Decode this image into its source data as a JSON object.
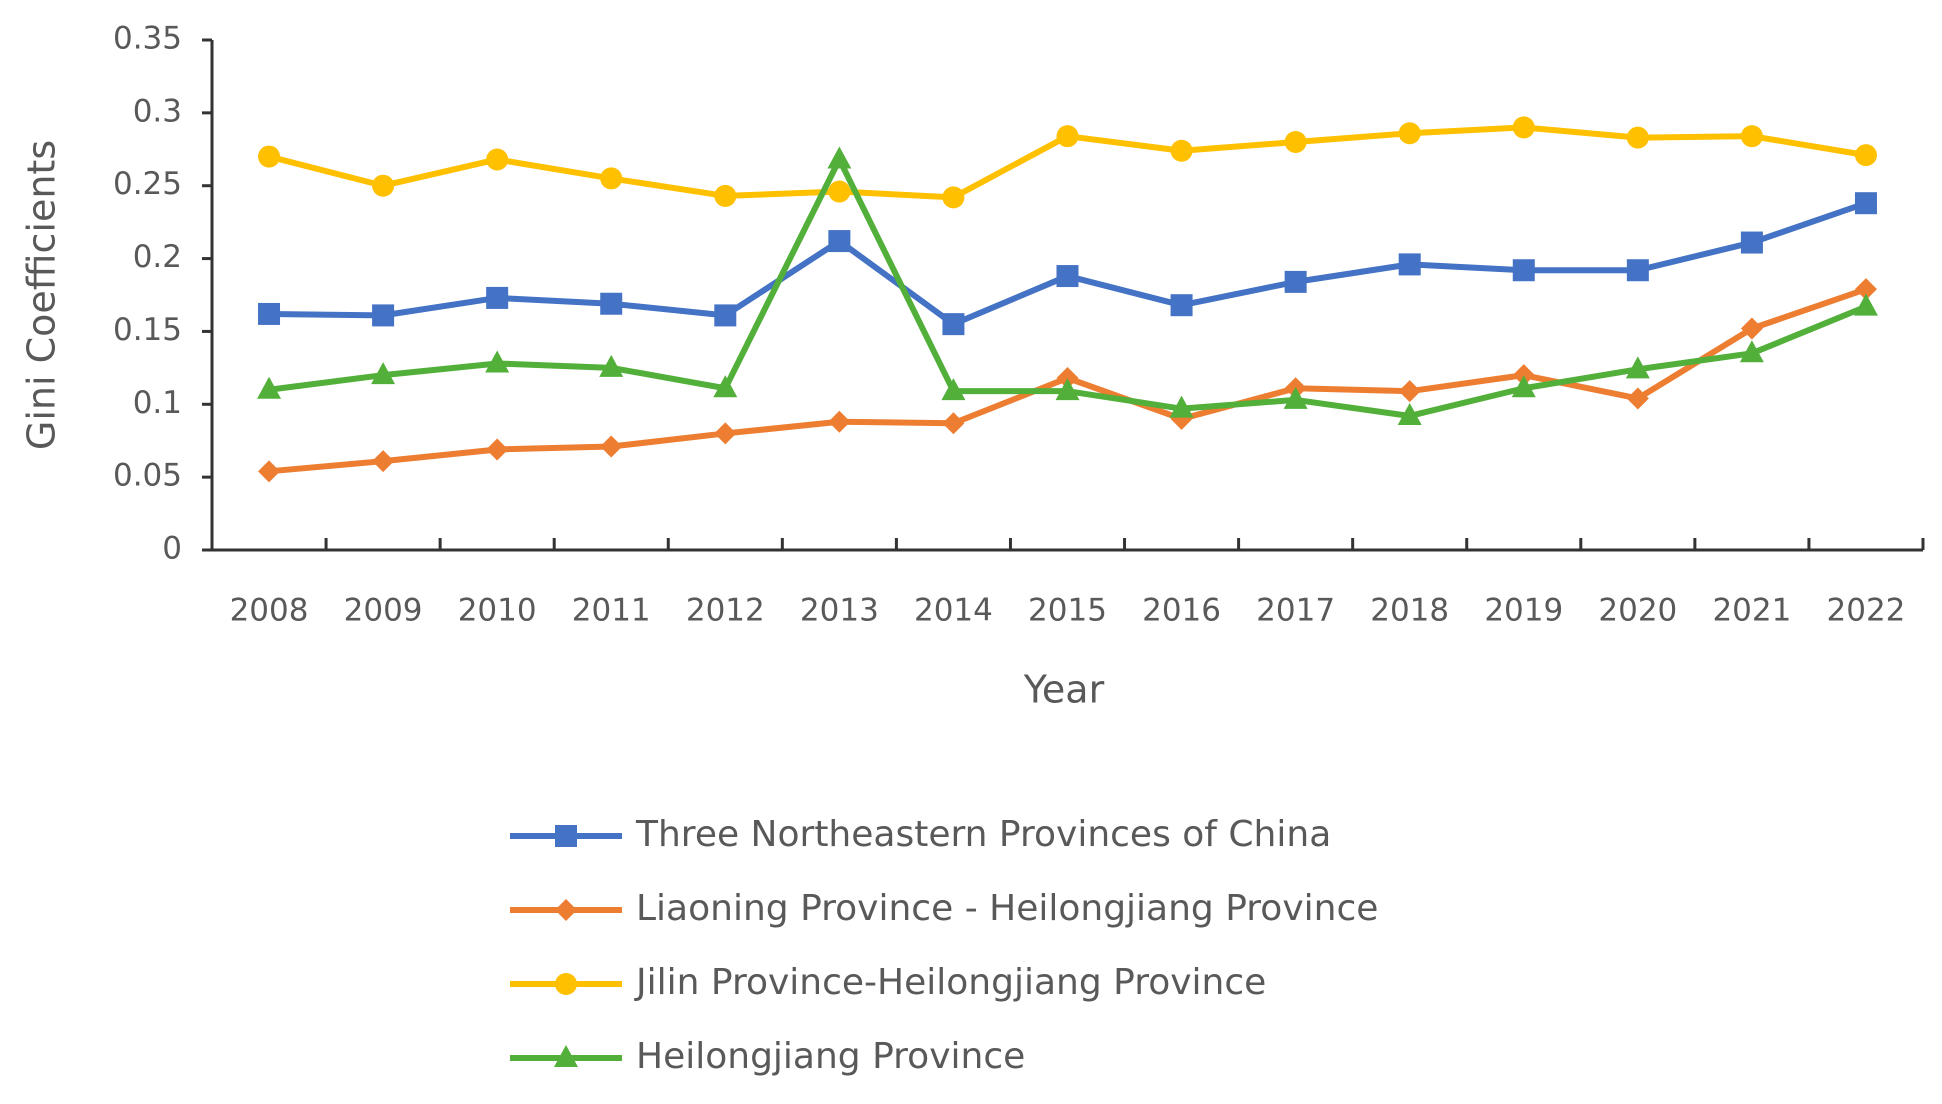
{
  "chart_data": {
    "type": "line",
    "x_label": "Year",
    "y_label": "Gini Coefficients",
    "categories": [
      "2008",
      "2009",
      "2010",
      "2011",
      "2012",
      "2013",
      "2014",
      "2015",
      "2016",
      "2017",
      "2018",
      "2019",
      "2020",
      "2021",
      "2022"
    ],
    "ylim": [
      0,
      0.35
    ],
    "yticks": [
      0,
      0.05,
      0.1,
      0.15,
      0.2,
      0.25,
      0.3,
      0.35
    ],
    "grid": false,
    "series": [
      {
        "name": "Three Northeastern Provinces of China",
        "color": "#4472c4",
        "marker": "square",
        "values": [
          0.162,
          0.161,
          0.173,
          0.169,
          0.161,
          0.212,
          0.155,
          0.188,
          0.168,
          0.184,
          0.196,
          0.192,
          0.192,
          0.211,
          0.238
        ]
      },
      {
        "name": "Liaoning Province - Heilongjiang Province",
        "color": "#ed7d31",
        "marker": "diamond",
        "values": [
          0.054,
          0.061,
          0.069,
          0.071,
          0.08,
          0.088,
          0.087,
          0.118,
          0.09,
          0.111,
          0.109,
          0.12,
          0.104,
          0.152,
          0.179
        ]
      },
      {
        "name": "Jilin Province-Heilongjiang Province",
        "color": "#ffc000",
        "marker": "circle",
        "values": [
          0.27,
          0.25,
          0.268,
          0.255,
          0.243,
          0.246,
          0.242,
          0.284,
          0.274,
          0.28,
          0.286,
          0.29,
          0.283,
          0.284,
          0.271
        ]
      },
      {
        "name": "Heilongjiang Province",
        "color": "#52b03a",
        "marker": "triangle",
        "values": [
          0.11,
          0.12,
          0.128,
          0.125,
          0.111,
          0.268,
          0.109,
          0.109,
          0.097,
          0.103,
          0.092,
          0.111,
          0.124,
          0.135,
          0.167
        ]
      }
    ]
  }
}
